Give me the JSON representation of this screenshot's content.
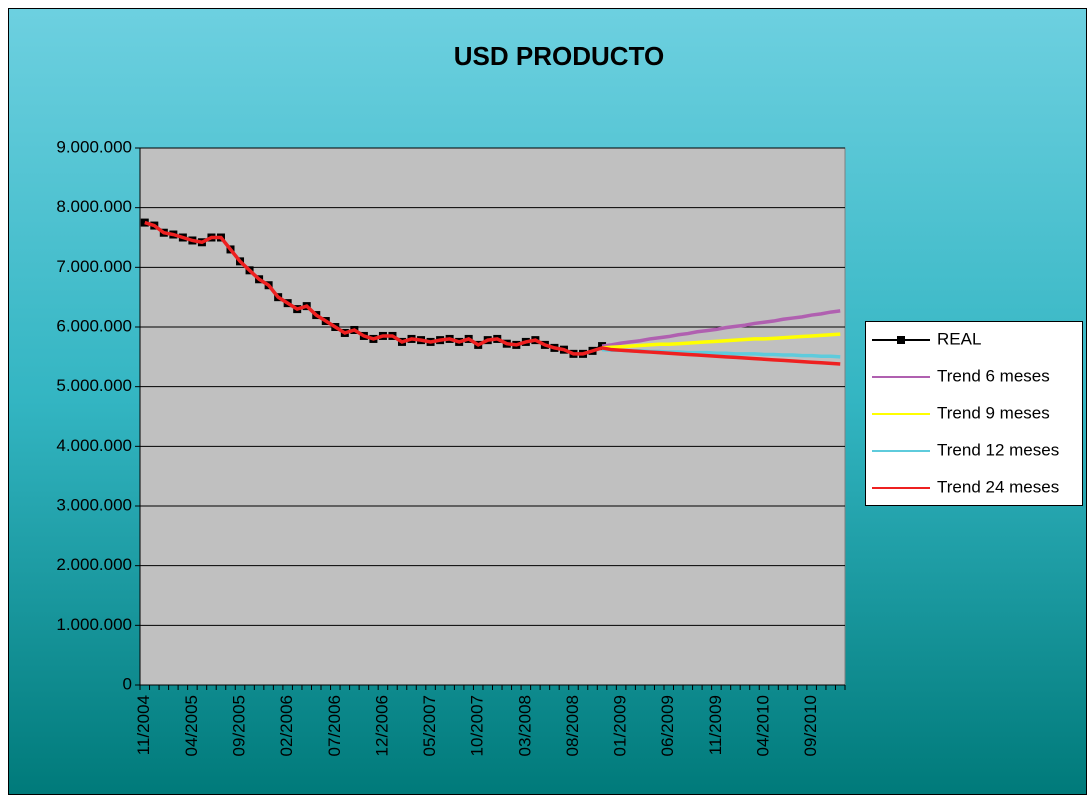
{
  "chart_data": {
    "type": "line",
    "title": "USD PRODUCTO",
    "categories": [
      "11/2004",
      null,
      null,
      null,
      null,
      "04/2005",
      null,
      null,
      null,
      null,
      "09/2005",
      null,
      null,
      null,
      null,
      "02/2006",
      null,
      null,
      null,
      null,
      "07/2006",
      null,
      null,
      null,
      null,
      "12/2006",
      null,
      null,
      null,
      null,
      "05/2007",
      null,
      null,
      null,
      null,
      "10/2007",
      null,
      null,
      null,
      null,
      "03/2008",
      null,
      null,
      null,
      null,
      "08/2008",
      null,
      null,
      null,
      null,
      "01/2009",
      null,
      null,
      null,
      null,
      "06/2009",
      null,
      null,
      null,
      null,
      "11/2009",
      null,
      null,
      null,
      null,
      "04/2010",
      null,
      null,
      null,
      null,
      "09/2010",
      null,
      null,
      null
    ],
    "series": [
      {
        "name": "REAL",
        "color": "#000000",
        "markers": true,
        "values": [
          7750000.0,
          7700000.0,
          7580000.0,
          7550000.0,
          7500000.0,
          7450000.0,
          7420000.0,
          7500000.0,
          7500000.0,
          7300000.0,
          7100000.0,
          6950000.0,
          6800000.0,
          6700000.0,
          6500000.0,
          6400000.0,
          6300000.0,
          6350000.0,
          6200000.0,
          6100000.0,
          6000000.0,
          5900000.0,
          5950000.0,
          5850000.0,
          5800000.0,
          5850000.0,
          5850000.0,
          5750000.0,
          5800000.0,
          5780000.0,
          5750000.0,
          5780000.0,
          5800000.0,
          5750000.0,
          5800000.0,
          5700000.0,
          5780000.0,
          5800000.0,
          5720000.0,
          5700000.0,
          5750000.0,
          5780000.0,
          5700000.0,
          5650000.0,
          5620000.0,
          5550000.0,
          5550000.0,
          5600000.0,
          5680000.0,
          null,
          null,
          null,
          null,
          null,
          null,
          null,
          null,
          null,
          null,
          null,
          null,
          null,
          null,
          null,
          null,
          null,
          null,
          null,
          null,
          null,
          null,
          null,
          null,
          null
        ]
      },
      {
        "name": "Trend 6 meses",
        "color": "#b060b0",
        "values": [
          null,
          null,
          null,
          null,
          null,
          null,
          null,
          null,
          null,
          null,
          null,
          null,
          null,
          null,
          null,
          null,
          null,
          null,
          null,
          null,
          null,
          null,
          null,
          null,
          null,
          null,
          null,
          null,
          null,
          null,
          null,
          null,
          null,
          null,
          null,
          null,
          null,
          null,
          null,
          null,
          null,
          null,
          null,
          null,
          null,
          null,
          null,
          null,
          5680000.0,
          5700000.0,
          5730000.0,
          5750000.0,
          5770000.0,
          5800000.0,
          5820000.0,
          5840000.0,
          5870000.0,
          5890000.0,
          5920000.0,
          5940000.0,
          5960000.0,
          5990000.0,
          6010000.0,
          6030000.0,
          6060000.0,
          6080000.0,
          6100000.0,
          6130000.0,
          6150000.0,
          6170000.0,
          6200000.0,
          6220000.0,
          6250000.0,
          6270000.0
        ]
      },
      {
        "name": "Trend 9 meses",
        "color": "#ffff00",
        "values": [
          null,
          null,
          null,
          null,
          null,
          null,
          null,
          null,
          null,
          null,
          null,
          null,
          null,
          null,
          null,
          null,
          null,
          null,
          null,
          null,
          null,
          null,
          null,
          null,
          null,
          null,
          null,
          null,
          null,
          null,
          null,
          null,
          null,
          null,
          null,
          null,
          null,
          null,
          null,
          null,
          null,
          null,
          null,
          null,
          null,
          null,
          null,
          null,
          5650000.0,
          5660000.0,
          5670000.0,
          5680000.0,
          5690000.0,
          5700000.0,
          5710000.0,
          5710000.0,
          5720000.0,
          5730000.0,
          5740000.0,
          5750000.0,
          5760000.0,
          5770000.0,
          5780000.0,
          5790000.0,
          5800000.0,
          5800000.0,
          5810000.0,
          5820000.0,
          5830000.0,
          5840000.0,
          5850000.0,
          5860000.0,
          5870000.0,
          5880000.0
        ]
      },
      {
        "name": "Trend 12 meses",
        "color": "#5ecbdc",
        "values": [
          null,
          null,
          null,
          null,
          null,
          null,
          null,
          null,
          null,
          null,
          null,
          null,
          null,
          null,
          null,
          null,
          null,
          null,
          null,
          null,
          null,
          null,
          null,
          null,
          null,
          null,
          null,
          null,
          null,
          null,
          null,
          null,
          null,
          null,
          null,
          null,
          null,
          null,
          null,
          null,
          null,
          null,
          null,
          null,
          null,
          null,
          null,
          null,
          5620000.0,
          5610000.0,
          5610000.0,
          5600000.0,
          5600000.0,
          5590000.0,
          5590000.0,
          5580000.0,
          5580000.0,
          5570000.0,
          5570000.0,
          5570000.0,
          5560000.0,
          5560000.0,
          5550000.0,
          5550000.0,
          5550000.0,
          5540000.0,
          5540000.0,
          5530000.0,
          5530000.0,
          5520000.0,
          5520000.0,
          5510000.0,
          5510000.0,
          5500000.0
        ]
      },
      {
        "name": "Trend 24 meses",
        "color": "#ee2020",
        "values": [
          7750000.0,
          7700000.0,
          7580000.0,
          7550000.0,
          7500000.0,
          7450000.0,
          7420000.0,
          7500000.0,
          7500000.0,
          7300000.0,
          7100000.0,
          6950000.0,
          6800000.0,
          6700000.0,
          6500000.0,
          6400000.0,
          6300000.0,
          6350000.0,
          6200000.0,
          6100000.0,
          6000000.0,
          5900000.0,
          5950000.0,
          5850000.0,
          5800000.0,
          5850000.0,
          5850000.0,
          5750000.0,
          5800000.0,
          5780000.0,
          5750000.0,
          5780000.0,
          5800000.0,
          5750000.0,
          5800000.0,
          5700000.0,
          5780000.0,
          5800000.0,
          5720000.0,
          5700000.0,
          5750000.0,
          5780000.0,
          5700000.0,
          5650000.0,
          5620000.0,
          5550000.0,
          5550000.0,
          5600000.0,
          5650000.0,
          5620000.0,
          5610000.0,
          5600000.0,
          5590000.0,
          5580000.0,
          5570000.0,
          5560000.0,
          5550000.0,
          5540000.0,
          5530000.0,
          5520000.0,
          5510000.0,
          5500000.0,
          5490000.0,
          5480000.0,
          5470000.0,
          5460000.0,
          5450000.0,
          5440000.0,
          5430000.0,
          5420000.0,
          5410000.0,
          5400000.0,
          5390000.0,
          5380000.0
        ]
      }
    ],
    "ylim": [
      0,
      9000000
    ],
    "yticks": [
      0,
      {
        "value": 1000000,
        "label": "1.000.000"
      },
      {
        "value": 2000000,
        "label": "2.000.000"
      },
      {
        "value": 3000000,
        "label": "3.000.000"
      },
      {
        "value": 4000000,
        "label": "4.000.000"
      },
      {
        "value": 5000000,
        "label": "5.000.000"
      },
      {
        "value": 6000000,
        "label": "6.000.000"
      },
      {
        "value": 7000000,
        "label": "7.000.000"
      },
      {
        "value": 8000000,
        "label": "8.000.000"
      },
      {
        "value": 9000000,
        "label": "9.000.000"
      }
    ],
    "grid": true,
    "legend": "right"
  }
}
